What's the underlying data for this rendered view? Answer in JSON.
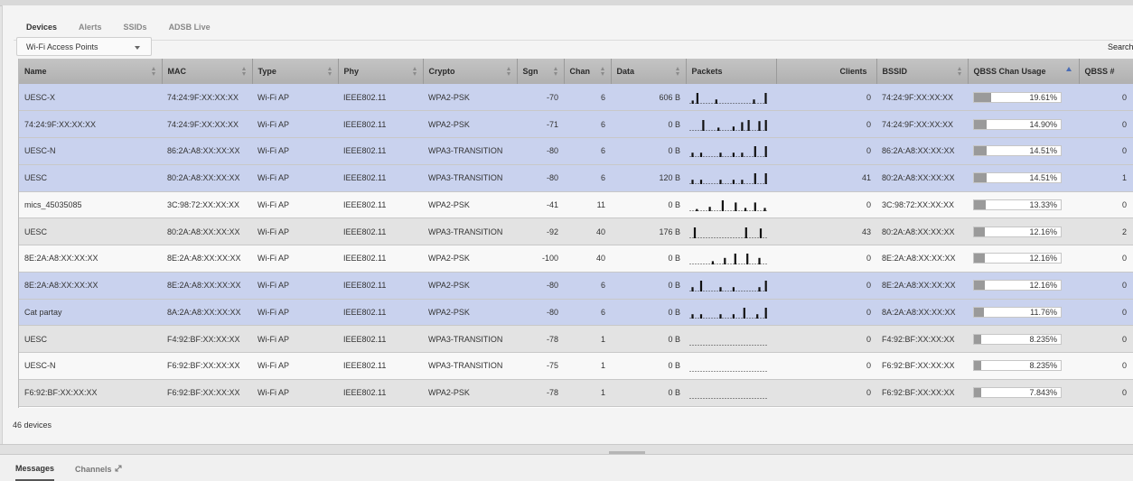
{
  "tabs": [
    "Devices",
    "Alerts",
    "SSIDs",
    "ADSB Live"
  ],
  "view_select": {
    "selected": "Wi-Fi Access Points"
  },
  "search_label": "Search:",
  "columns": [
    "Name",
    "MAC",
    "Type",
    "Phy",
    "Crypto",
    "Sgn",
    "Chan",
    "Data",
    "Packets",
    "Clients",
    "BSSID",
    "QBSS Chan Usage",
    "QBSS #"
  ],
  "rows": [
    {
      "name": "UESC-X",
      "mac": "74:24:9F:XX:XX:XX",
      "type": "Wi-Fi AP",
      "phy": "IEEE802.11",
      "crypto": "WPA2-PSK",
      "sgn": "-70",
      "chan": "6",
      "data": "606 B",
      "packets": [
        0,
        0.3,
        0,
        1,
        0,
        0,
        0,
        0,
        0,
        0,
        0,
        0.4,
        0,
        0,
        0,
        0,
        0,
        0,
        0,
        0,
        0,
        0,
        0,
        0,
        0,
        0,
        0,
        0.4,
        0,
        0,
        0,
        0,
        1
      ],
      "clients": "0",
      "bssid": "74:24:9F:XX:XX:XX",
      "usage": "19.61%",
      "usage_frac": 0.1961,
      "qbss": "0",
      "style": "sel"
    },
    {
      "name": "74:24:9F:XX:XX:XX",
      "mac": "74:24:9F:XX:XX:XX",
      "type": "Wi-Fi AP",
      "phy": "IEEE802.11",
      "crypto": "WPA2-PSK",
      "sgn": "-71",
      "chan": "6",
      "data": "0 B",
      "packets": [
        0,
        0,
        0,
        0,
        0,
        0,
        1,
        0,
        0,
        0,
        0,
        0,
        0,
        0.3,
        0,
        0,
        0,
        0,
        0,
        0,
        0.4,
        0,
        0,
        0,
        0.8,
        0,
        0,
        1,
        0,
        0,
        0,
        0,
        0.9,
        0,
        0,
        1
      ],
      "clients": "0",
      "bssid": "74:24:9F:XX:XX:XX",
      "usage": "14.90%",
      "usage_frac": 0.149,
      "qbss": "0",
      "style": "sel"
    },
    {
      "name": "UESC-N",
      "mac": "86:2A:A8:XX:XX:XX",
      "type": "Wi-Fi AP",
      "phy": "IEEE802.11",
      "crypto": "WPA3-TRANSITION",
      "sgn": "-80",
      "chan": "6",
      "data": "0 B",
      "packets": [
        0,
        0.4,
        0,
        0,
        0,
        0.4,
        0,
        0,
        0,
        0,
        0,
        0,
        0,
        0,
        0.4,
        0,
        0,
        0,
        0,
        0,
        0.4,
        0,
        0,
        0,
        0.4,
        0,
        0,
        0,
        0,
        0,
        1,
        0,
        0,
        0,
        0,
        1
      ],
      "clients": "0",
      "bssid": "86:2A:A8:XX:XX:XX",
      "usage": "14.51%",
      "usage_frac": 0.1451,
      "qbss": "0",
      "style": "sel"
    },
    {
      "name": "UESC",
      "mac": "80:2A:A8:XX:XX:XX",
      "type": "Wi-Fi AP",
      "phy": "IEEE802.11",
      "crypto": "WPA3-TRANSITION",
      "sgn": "-80",
      "chan": "6",
      "data": "120 B",
      "packets": [
        0,
        0.4,
        0,
        0,
        0,
        0.4,
        0,
        0,
        0,
        0,
        0,
        0,
        0,
        0,
        0.4,
        0,
        0,
        0,
        0,
        0,
        0.4,
        0,
        0,
        0,
        0.4,
        0,
        0,
        0,
        0,
        0,
        1,
        0,
        0,
        0,
        0,
        1
      ],
      "clients": "41",
      "bssid": "80:2A:A8:XX:XX:XX",
      "usage": "14.51%",
      "usage_frac": 0.1451,
      "qbss": "1",
      "style": "sel"
    },
    {
      "name": "mics_45035085",
      "mac": "3C:98:72:XX:XX:XX",
      "type": "Wi-Fi AP",
      "phy": "IEEE802.11",
      "crypto": "WPA2-PSK",
      "sgn": "-41",
      "chan": "11",
      "data": "0 B",
      "packets": [
        0,
        0,
        0,
        0,
        0.2,
        0,
        0,
        0,
        0,
        0,
        0,
        0,
        0.4,
        0,
        0,
        0,
        0,
        0,
        0,
        0,
        1,
        0,
        0,
        0,
        0,
        0,
        0,
        0,
        0.8,
        0,
        0,
        0,
        0,
        0,
        0.3,
        0,
        0,
        0,
        0,
        0,
        0.8,
        0,
        0,
        0,
        0,
        0,
        0.3,
        0
      ],
      "clients": "0",
      "bssid": "3C:98:72:XX:XX:XX",
      "usage": "13.33%",
      "usage_frac": 0.1333,
      "qbss": "0",
      "style": "odd"
    },
    {
      "name": "UESC",
      "mac": "80:2A:A8:XX:XX:XX",
      "type": "Wi-Fi AP",
      "phy": "IEEE802.11",
      "crypto": "WPA3-TRANSITION",
      "sgn": "-92",
      "chan": "40",
      "data": "176 B",
      "packets": [
        0,
        0,
        0,
        1,
        0,
        0,
        0,
        0,
        0,
        0,
        0,
        0,
        0,
        0,
        0,
        0,
        0,
        0,
        0,
        0,
        0,
        0,
        0,
        0,
        0,
        0,
        0,
        0,
        0,
        0,
        0,
        0,
        0,
        0,
        0,
        0,
        0,
        0,
        1,
        0,
        0,
        0,
        0,
        0,
        0,
        0,
        0,
        0,
        0.9,
        0,
        0,
        0,
        0
      ],
      "clients": "43",
      "bssid": "80:2A:A8:XX:XX:XX",
      "usage": "12.16%",
      "usage_frac": 0.1216,
      "qbss": "2",
      "style": "even"
    },
    {
      "name": "8E:2A:A8:XX:XX:XX",
      "mac": "8E:2A:A8:XX:XX:XX",
      "type": "Wi-Fi AP",
      "phy": "IEEE802.11",
      "crypto": "WPA2-PSK",
      "sgn": "-100",
      "chan": "40",
      "data": "0 B",
      "packets": [
        0,
        0,
        0,
        0,
        0,
        0,
        0,
        0,
        0,
        0,
        0,
        0,
        0,
        0.3,
        0,
        0,
        0,
        0,
        0,
        0,
        0.6,
        0,
        0,
        0,
        0,
        0,
        1,
        0,
        0,
        0,
        0,
        0,
        0,
        1,
        0,
        0,
        0,
        0,
        0,
        0,
        0.6,
        0,
        0,
        0,
        0
      ],
      "clients": "0",
      "bssid": "8E:2A:A8:XX:XX:XX",
      "usage": "12.16%",
      "usage_frac": 0.1216,
      "qbss": "0",
      "style": "odd"
    },
    {
      "name": "8E:2A:A8:XX:XX:XX",
      "mac": "8E:2A:A8:XX:XX:XX",
      "type": "Wi-Fi AP",
      "phy": "IEEE802.11",
      "crypto": "WPA2-PSK",
      "sgn": "-80",
      "chan": "6",
      "data": "0 B",
      "packets": [
        0,
        0.4,
        0,
        0,
        0,
        1,
        0,
        0,
        0,
        0,
        0,
        0,
        0,
        0,
        0.4,
        0,
        0,
        0,
        0,
        0,
        0.4,
        0,
        0,
        0,
        0,
        0,
        0,
        0,
        0,
        0,
        0,
        0,
        0.4,
        0,
        0,
        1
      ],
      "clients": "0",
      "bssid": "8E:2A:A8:XX:XX:XX",
      "usage": "12.16%",
      "usage_frac": 0.1216,
      "qbss": "0",
      "style": "sel"
    },
    {
      "name": "Cat partay",
      "mac": "8A:2A:A8:XX:XX:XX",
      "type": "Wi-Fi AP",
      "phy": "IEEE802.11",
      "crypto": "WPA2-PSK",
      "sgn": "-80",
      "chan": "6",
      "data": "0 B",
      "packets": [
        0,
        0.4,
        0,
        0,
        0,
        0.4,
        0,
        0,
        0,
        0,
        0,
        0,
        0,
        0,
        0.4,
        0,
        0,
        0,
        0,
        0,
        0.4,
        0,
        0,
        0,
        0,
        1,
        0,
        0,
        0,
        0,
        0,
        0.4,
        0,
        0,
        0,
        1
      ],
      "clients": "0",
      "bssid": "8A:2A:A8:XX:XX:XX",
      "usage": "11.76%",
      "usage_frac": 0.1176,
      "qbss": "0",
      "style": "sel"
    },
    {
      "name": "UESC",
      "mac": "F4:92:BF:XX:XX:XX",
      "type": "Wi-Fi AP",
      "phy": "IEEE802.11",
      "crypto": "WPA3-TRANSITION",
      "sgn": "-78",
      "chan": "1",
      "data": "0 B",
      "packets": [],
      "clients": "0",
      "bssid": "F4:92:BF:XX:XX:XX",
      "usage": "8.235%",
      "usage_frac": 0.08235,
      "qbss": "0",
      "style": "even"
    },
    {
      "name": "UESC-N",
      "mac": "F6:92:BF:XX:XX:XX",
      "type": "Wi-Fi AP",
      "phy": "IEEE802.11",
      "crypto": "WPA3-TRANSITION",
      "sgn": "-75",
      "chan": "1",
      "data": "0 B",
      "packets": [],
      "clients": "0",
      "bssid": "F6:92:BF:XX:XX:XX",
      "usage": "8.235%",
      "usage_frac": 0.08235,
      "qbss": "0",
      "style": "odd"
    },
    {
      "name": "F6:92:BF:XX:XX:XX",
      "mac": "F6:92:BF:XX:XX:XX",
      "type": "Wi-Fi AP",
      "phy": "IEEE802.11",
      "crypto": "WPA2-PSK",
      "sgn": "-78",
      "chan": "1",
      "data": "0 B",
      "packets": [],
      "clients": "0",
      "bssid": "F6:92:BF:XX:XX:XX",
      "usage": "7.843%",
      "usage_frac": 0.07843,
      "qbss": "0",
      "style": "even"
    }
  ],
  "footer_count": "46 devices",
  "bottom_tabs": {
    "messages": "Messages",
    "channels": "Channels"
  },
  "icons": {
    "view_dropdown": "chevron-down-icon",
    "channels_popout": "expand-arrows-icon",
    "sort": "sort-arrows-icon"
  },
  "colors": {
    "selected_row": "#c9d2ee",
    "header": "#b8b8b8",
    "usage_fill": "#9a9a9a"
  }
}
